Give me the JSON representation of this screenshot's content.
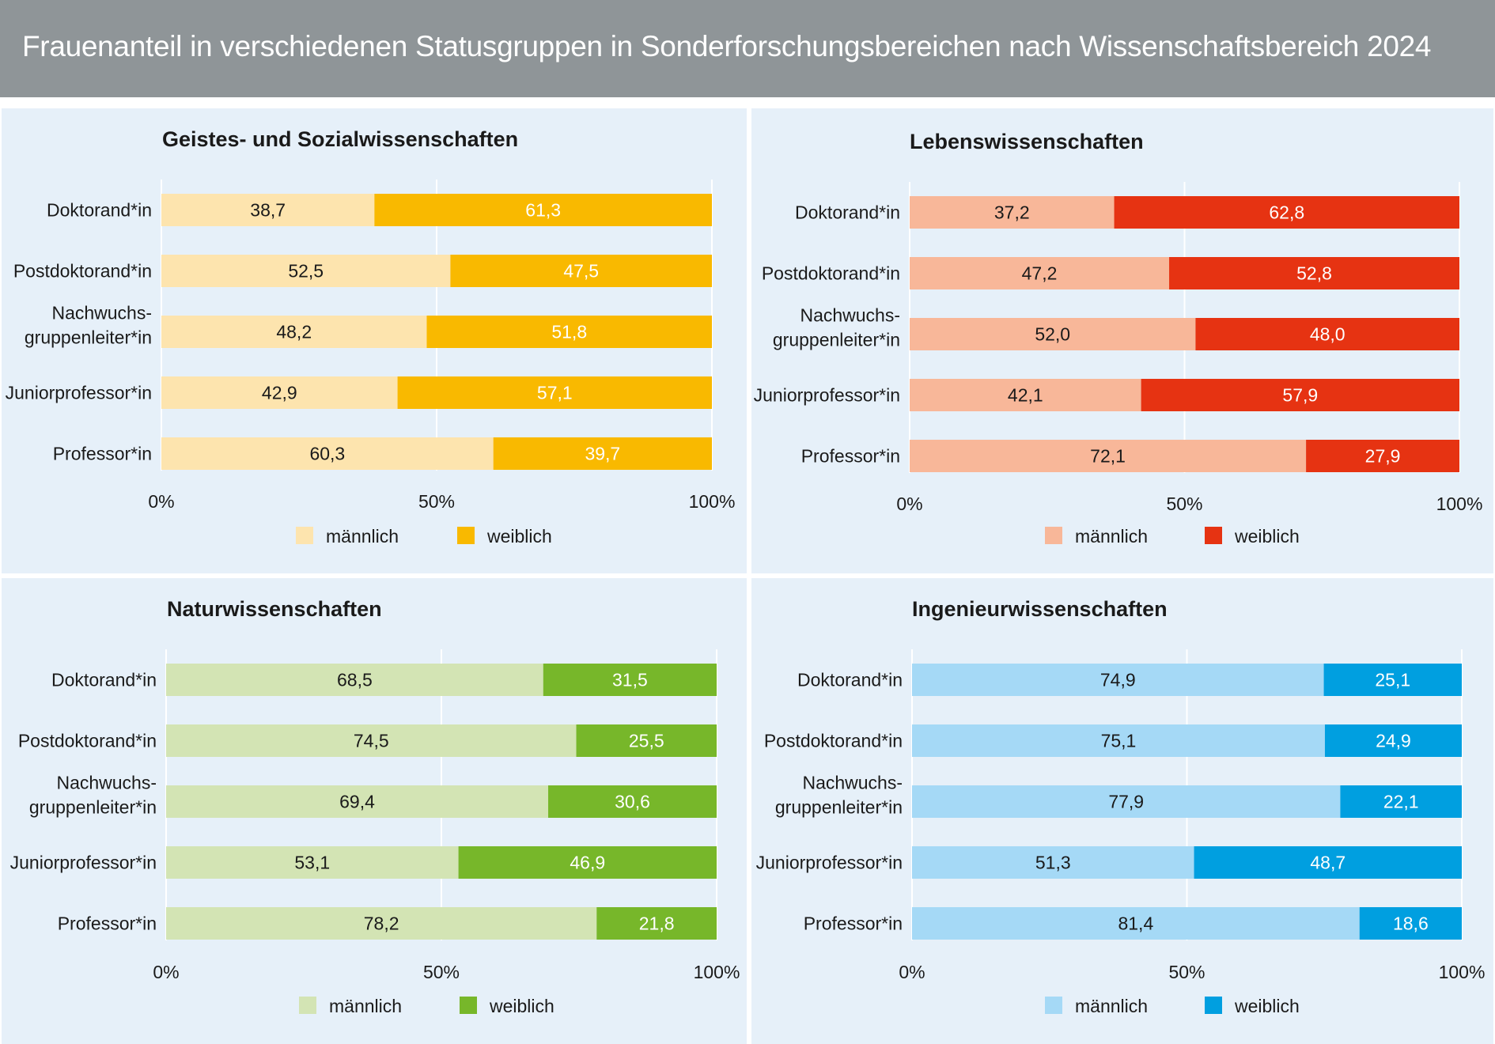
{
  "title": "Frauenanteil in verschiedenen Statusgruppen in Sonderforschungsbereichen nach Wissenschaftsbereich 2024",
  "legend_labels": [
    "männlich",
    "weiblich"
  ],
  "chart_data": [
    {
      "type": "bar",
      "orientation": "horizontal",
      "stacked": true,
      "title": "Geistes- und Sozialwissenschaften",
      "categories": [
        "Doktorand*in",
        "Postdoktorand*in",
        "Nachwuchs-\ngruppenleiter*in",
        "Juniorprofessor*in",
        "Professor*in"
      ],
      "series": [
        {
          "name": "männlich",
          "values": [
            38.7,
            52.5,
            48.2,
            42.9,
            60.3
          ],
          "color": "#fde4ae"
        },
        {
          "name": "weiblich",
          "values": [
            61.3,
            47.5,
            51.8,
            57.1,
            39.7
          ],
          "color": "#f9b900"
        }
      ],
      "xlim": [
        0,
        100
      ],
      "xticks": [
        "0%",
        "50%",
        "100%"
      ],
      "grid": true,
      "legend_position": "bottom"
    },
    {
      "type": "bar",
      "orientation": "horizontal",
      "stacked": true,
      "title": "Lebenswissenschaften",
      "categories": [
        "Doktorand*in",
        "Postdoktorand*in",
        "Nachwuchs-\ngruppenleiter*in",
        "Juniorprofessor*in",
        "Professor*in"
      ],
      "series": [
        {
          "name": "männlich",
          "values": [
            37.2,
            47.2,
            52.0,
            42.1,
            72.1
          ],
          "color": "#f8b799"
        },
        {
          "name": "weiblich",
          "values": [
            62.8,
            52.8,
            48.0,
            57.9,
            27.9
          ],
          "color": "#e63312"
        }
      ],
      "xlim": [
        0,
        100
      ],
      "xticks": [
        "0%",
        "50%",
        "100%"
      ],
      "grid": true,
      "legend_position": "bottom"
    },
    {
      "type": "bar",
      "orientation": "horizontal",
      "stacked": true,
      "title": "Naturwissenschaften",
      "categories": [
        "Doktorand*in",
        "Postdoktorand*in",
        "Nachwuchs-\ngruppenleiter*in",
        "Juniorprofessor*in",
        "Professor*in"
      ],
      "series": [
        {
          "name": "männlich",
          "values": [
            68.5,
            74.5,
            69.4,
            53.1,
            78.2
          ],
          "color": "#d3e4b4"
        },
        {
          "name": "weiblich",
          "values": [
            31.5,
            25.5,
            30.6,
            46.9,
            21.8
          ],
          "color": "#77b72a"
        }
      ],
      "xlim": [
        0,
        100
      ],
      "xticks": [
        "0%",
        "50%",
        "100%"
      ],
      "grid": true,
      "legend_position": "bottom"
    },
    {
      "type": "bar",
      "orientation": "horizontal",
      "stacked": true,
      "title": "Ingenieurwissenschaften",
      "categories": [
        "Doktorand*in",
        "Postdoktorand*in",
        "Nachwuchs-\ngruppenleiter*in",
        "Juniorprofessor*in",
        "Professor*in"
      ],
      "series": [
        {
          "name": "männlich",
          "values": [
            74.9,
            75.1,
            77.9,
            51.3,
            81.4
          ],
          "color": "#a5d9f6"
        },
        {
          "name": "weiblich",
          "values": [
            25.1,
            24.9,
            22.1,
            48.7,
            18.6
          ],
          "color": "#009fe0"
        }
      ],
      "xlim": [
        0,
        100
      ],
      "xticks": [
        "0%",
        "50%",
        "100%"
      ],
      "grid": true,
      "legend_position": "bottom"
    }
  ]
}
